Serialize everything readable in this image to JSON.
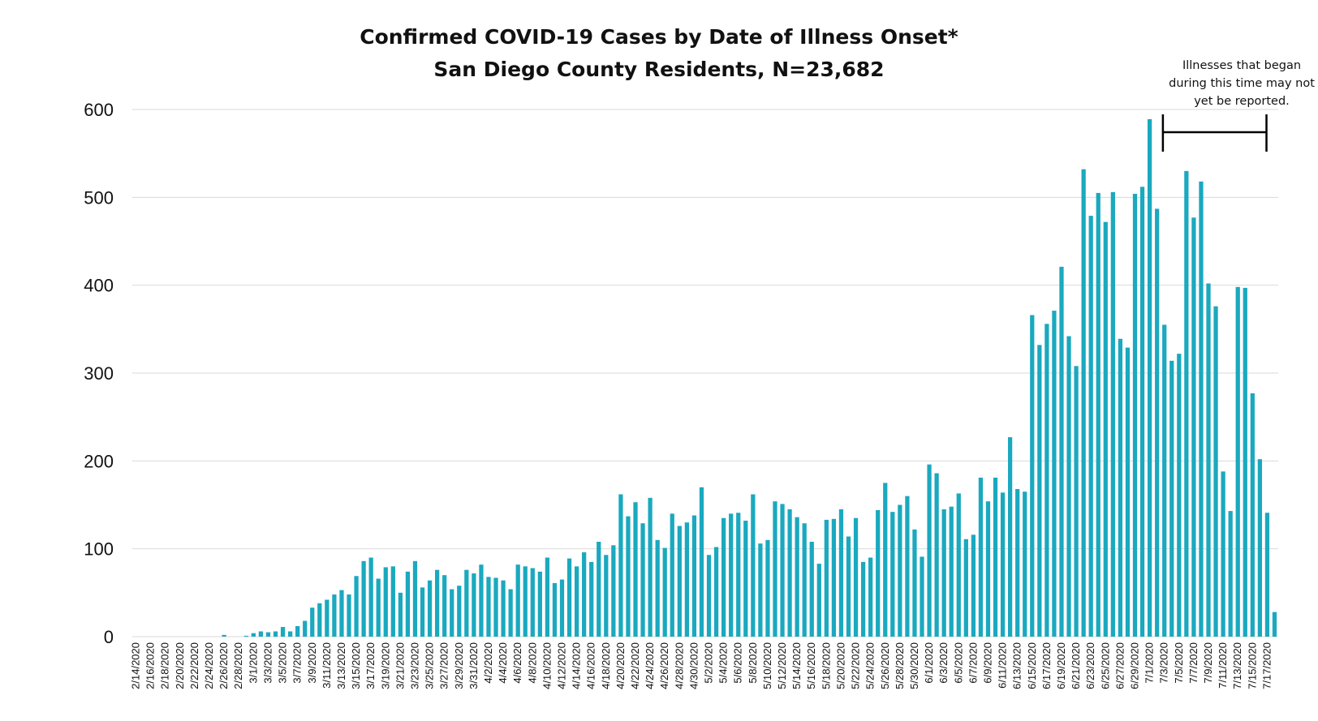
{
  "chart_data": {
    "type": "bar",
    "title": "Confirmed COVID-19 Cases by Date of Illness Onset*",
    "subtitle": "San Diego County Residents, N=23,682",
    "annotation": [
      "Illnesses that began",
      "during this time may not",
      "yet be reported."
    ],
    "ylim": [
      0,
      600
    ],
    "yticks": [
      0,
      100,
      200,
      300,
      400,
      500,
      600
    ],
    "grid": true,
    "bar_color": "#1aa9bf",
    "annotation_range": [
      "7/3/2020",
      "7/16/2020"
    ],
    "categories": [
      "2/14/2020",
      "2/15/2020",
      "2/16/2020",
      "2/17/2020",
      "2/18/2020",
      "2/19/2020",
      "2/20/2020",
      "2/21/2020",
      "2/22/2020",
      "2/23/2020",
      "2/24/2020",
      "2/25/2020",
      "2/26/2020",
      "2/27/2020",
      "2/28/2020",
      "2/29/2020",
      "3/1/2020",
      "3/2/2020",
      "3/3/2020",
      "3/4/2020",
      "3/5/2020",
      "3/6/2020",
      "3/7/2020",
      "3/8/2020",
      "3/9/2020",
      "3/10/2020",
      "3/11/2020",
      "3/12/2020",
      "3/13/2020",
      "3/14/2020",
      "3/15/2020",
      "3/16/2020",
      "3/17/2020",
      "3/18/2020",
      "3/19/2020",
      "3/20/2020",
      "3/21/2020",
      "3/22/2020",
      "3/23/2020",
      "3/24/2020",
      "3/25/2020",
      "3/26/2020",
      "3/27/2020",
      "3/28/2020",
      "3/29/2020",
      "3/30/2020",
      "3/31/2020",
      "4/1/2020",
      "4/2/2020",
      "4/3/2020",
      "4/4/2020",
      "4/5/2020",
      "4/6/2020",
      "4/7/2020",
      "4/8/2020",
      "4/9/2020",
      "4/10/2020",
      "4/11/2020",
      "4/12/2020",
      "4/13/2020",
      "4/14/2020",
      "4/15/2020",
      "4/16/2020",
      "4/17/2020",
      "4/18/2020",
      "4/19/2020",
      "4/20/2020",
      "4/21/2020",
      "4/22/2020",
      "4/23/2020",
      "4/24/2020",
      "4/25/2020",
      "4/26/2020",
      "4/27/2020",
      "4/28/2020",
      "4/29/2020",
      "4/30/2020",
      "5/1/2020",
      "5/2/2020",
      "5/3/2020",
      "5/4/2020",
      "5/5/2020",
      "5/6/2020",
      "5/7/2020",
      "5/8/2020",
      "5/9/2020",
      "5/10/2020",
      "5/11/2020",
      "5/12/2020",
      "5/13/2020",
      "5/14/2020",
      "5/15/2020",
      "5/16/2020",
      "5/17/2020",
      "5/18/2020",
      "5/19/2020",
      "5/20/2020",
      "5/21/2020",
      "5/22/2020",
      "5/23/2020",
      "5/24/2020",
      "5/25/2020",
      "5/26/2020",
      "5/27/2020",
      "5/28/2020",
      "5/29/2020",
      "5/30/2020",
      "5/31/2020",
      "6/1/2020",
      "6/2/2020",
      "6/3/2020",
      "6/4/2020",
      "6/5/2020",
      "6/6/2020",
      "6/7/2020",
      "6/8/2020",
      "6/9/2020",
      "6/10/2020",
      "6/11/2020",
      "6/12/2020",
      "6/13/2020",
      "6/14/2020",
      "6/15/2020",
      "6/16/2020",
      "6/17/2020",
      "6/18/2020",
      "6/19/2020",
      "6/20/2020",
      "6/21/2020",
      "6/22/2020",
      "6/23/2020",
      "6/24/2020",
      "6/25/2020",
      "6/26/2020",
      "6/27/2020",
      "6/28/2020",
      "6/29/2020",
      "6/30/2020",
      "7/1/2020",
      "7/2/2020",
      "7/3/2020",
      "7/4/2020",
      "7/5/2020",
      "7/6/2020",
      "7/7/2020",
      "7/8/2020",
      "7/9/2020",
      "7/10/2020",
      "7/11/2020",
      "7/12/2020",
      "7/13/2020",
      "7/14/2020",
      "7/15/2020",
      "7/16/2020",
      "7/17/2020",
      "7/18/2020"
    ],
    "values": [
      0,
      0,
      0,
      0,
      0,
      0,
      0,
      0,
      0,
      0,
      0,
      0,
      2,
      0,
      0,
      1,
      4,
      6,
      5,
      6,
      11,
      6,
      12,
      18,
      33,
      38,
      42,
      48,
      53,
      48,
      69,
      86,
      90,
      66,
      79,
      80,
      50,
      74,
      86,
      56,
      64,
      76,
      70,
      54,
      58,
      76,
      72,
      82,
      68,
      67,
      64,
      54,
      82,
      80,
      78,
      74,
      90,
      61,
      65,
      89,
      80,
      96,
      85,
      108,
      93,
      104,
      162,
      137,
      153,
      129,
      158,
      110,
      101,
      140,
      126,
      130,
      138,
      170,
      93,
      102,
      135,
      140,
      141,
      132,
      162,
      106,
      110,
      154,
      151,
      145,
      136,
      129,
      108,
      83,
      133,
      134,
      145,
      114,
      135,
      85,
      90,
      144,
      175,
      142,
      150,
      160,
      122,
      91,
      196,
      186,
      145,
      148,
      163,
      111,
      116,
      181,
      154,
      181,
      164,
      227,
      168,
      165,
      366,
      332,
      356,
      371,
      421,
      342,
      308,
      532,
      479,
      505,
      472,
      506,
      339,
      329,
      504,
      512,
      589,
      487,
      355,
      314,
      322,
      530,
      477,
      518,
      402,
      376,
      188,
      143,
      398,
      397,
      277,
      202,
      141,
      28
    ]
  }
}
